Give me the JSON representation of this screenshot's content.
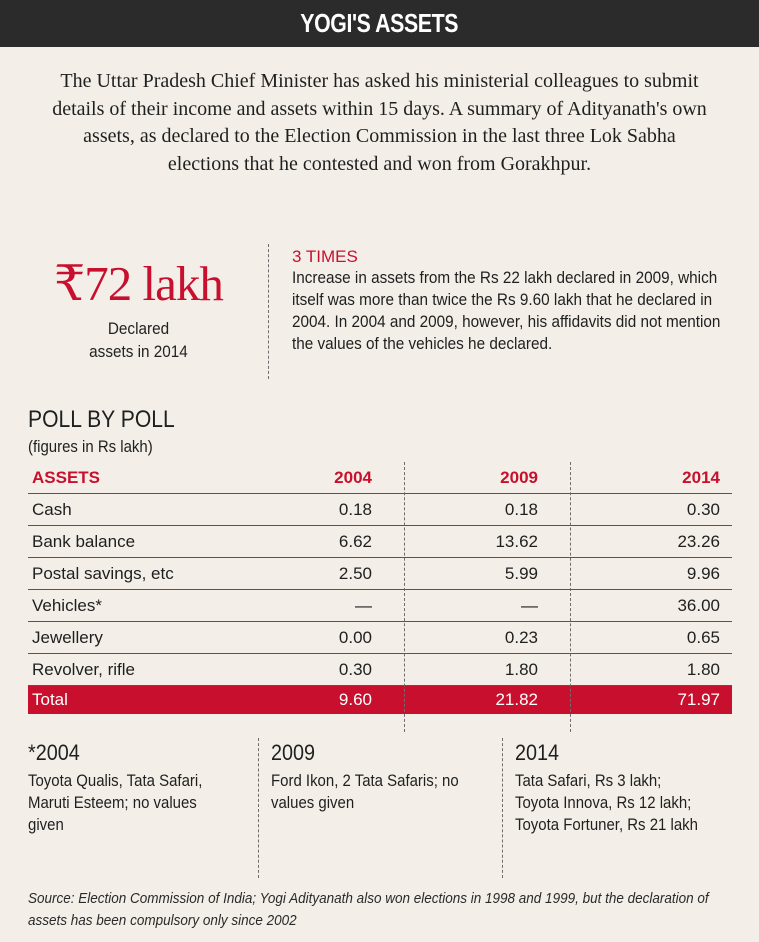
{
  "header": {
    "title": "YOGI'S ASSETS"
  },
  "intro": "The Uttar Pradesh Chief Minister has asked his ministerial colleagues to submit details of their income and assets within 15 days. A summary of Adityanath's own assets, as declared to the Election Commission in the last three Lok Sabha elections that he contested and won from Gorakhpur.",
  "highlight": {
    "figure": "₹72 lakh",
    "caption_line1": "Declared",
    "caption_line2": "assets in 2014"
  },
  "callout": {
    "heading": "3 TIMES",
    "body": "Increase in assets from the Rs 22 lakh declared in 2009, which itself was more than twice the Rs 9.60 lakh that he declared in 2004. In 2004 and 2009, however, his affidavits did not mention the values of the vehicles he declared."
  },
  "poll": {
    "title": "POLL BY POLL",
    "subtitle": "(figures in Rs lakh)"
  },
  "table": {
    "columns": [
      "ASSETS",
      "2004",
      "2009",
      "2014"
    ],
    "rows": [
      [
        "Cash",
        "0.18",
        "0.18",
        "0.30"
      ],
      [
        "Bank balance",
        "6.62",
        "13.62",
        "23.26"
      ],
      [
        "Postal savings, etc",
        "2.50",
        "5.99",
        "9.96"
      ],
      [
        "Vehicles*",
        "—",
        "—",
        "36.00"
      ],
      [
        "Jewellery",
        "0.00",
        "0.23",
        "0.65"
      ],
      [
        "Revolver, rifle",
        "0.30",
        "1.80",
        "1.80"
      ]
    ],
    "total": [
      "Total",
      "9.60",
      "21.82",
      "71.97"
    ]
  },
  "notes": [
    {
      "year": "*2004",
      "text": "Toyota Qualis, Tata Safari, Maruti Esteem; no values given"
    },
    {
      "year": "2009",
      "text": "Ford Ikon, 2 Tata Safaris; no values given"
    },
    {
      "year": "2014",
      "text": "Tata Safari, Rs 3 lakh; Toyota Innova, Rs 12 lakh; Toyota Fortuner, Rs 21 lakh"
    }
  ],
  "source": "Source: Election Commission of India; Yogi Adityanath also won elections in 1998 and 1999, but the declaration of assets has been compulsory only since 2002",
  "colors": {
    "accent": "#c8102e",
    "header_bg": "#2b2b2b",
    "background": "#f3efe8"
  }
}
